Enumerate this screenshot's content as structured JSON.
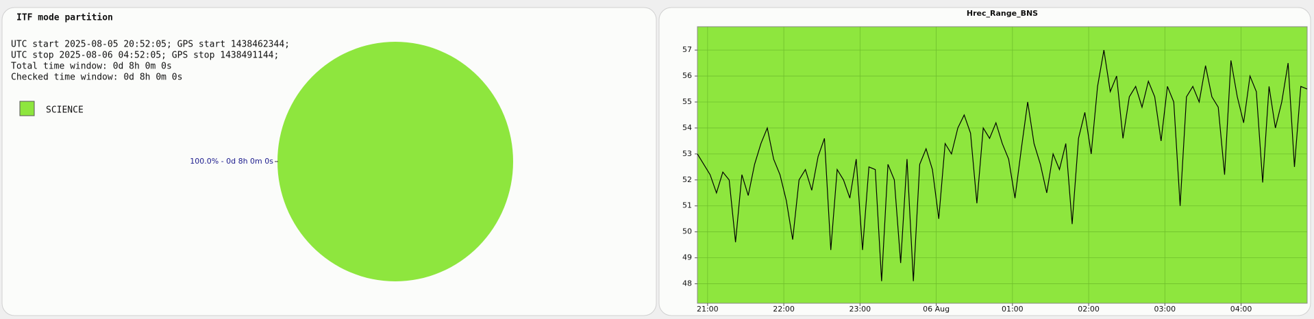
{
  "chart_data": [
    {
      "type": "pie",
      "title": "ITF mode partition",
      "text_lines": [
        "UTC start 2025-08-05 20:52:05; GPS start 1438462344;",
        "UTC stop 2025-08-06 04:52:05; GPS stop 1438491144;",
        "Total time window: 0d 8h 0m 0s",
        "Checked time window: 0d 8h 0m 0s"
      ],
      "categories": [
        "SCIENCE"
      ],
      "values": [
        100
      ],
      "value_labels": [
        "100.0% - 0d 8h 0m 0s"
      ],
      "colors": [
        "#8ee63e"
      ]
    },
    {
      "type": "line",
      "title": "Hrec_Range_BNS",
      "x": [
        "20:52",
        "20:57",
        "21:02",
        "21:07",
        "21:12",
        "21:17",
        "21:22",
        "21:27",
        "21:32",
        "21:37",
        "21:42",
        "21:47",
        "21:52",
        "21:57",
        "22:02",
        "22:07",
        "22:12",
        "22:17",
        "22:22",
        "22:27",
        "22:32",
        "22:37",
        "22:42",
        "22:47",
        "22:52",
        "22:57",
        "23:02",
        "23:07",
        "23:12",
        "23:17",
        "23:22",
        "23:27",
        "23:32",
        "23:37",
        "23:42",
        "23:47",
        "23:52",
        "23:57",
        "00:02",
        "00:07",
        "00:12",
        "00:17",
        "00:22",
        "00:27",
        "00:32",
        "00:37",
        "00:42",
        "00:47",
        "00:52",
        "00:57",
        "01:02",
        "01:07",
        "01:12",
        "01:17",
        "01:22",
        "01:27",
        "01:32",
        "01:37",
        "01:42",
        "01:47",
        "01:52",
        "01:57",
        "02:02",
        "02:07",
        "02:12",
        "02:17",
        "02:22",
        "02:27",
        "02:32",
        "02:37",
        "02:42",
        "02:47",
        "02:52",
        "02:57",
        "03:02",
        "03:07",
        "03:12",
        "03:17",
        "03:22",
        "03:27",
        "03:32",
        "03:37",
        "03:42",
        "03:47",
        "03:52",
        "03:57",
        "04:02",
        "04:07",
        "04:12",
        "04:17",
        "04:22",
        "04:27",
        "04:32",
        "04:37",
        "04:42",
        "04:47",
        "04:52"
      ],
      "series": [
        {
          "color": "#000000",
          "values": [
            53,
            52.6,
            52.2,
            51.5,
            52.3,
            52.0,
            49.6,
            52.2,
            51.4,
            52.6,
            53.4,
            54.0,
            52.8,
            52.2,
            51.2,
            49.7,
            52.0,
            52.4,
            51.6,
            52.9,
            53.6,
            49.3,
            52.4,
            52.0,
            51.3,
            52.8,
            49.3,
            52.5,
            52.4,
            48.1,
            52.6,
            52.0,
            48.8,
            52.8,
            48.1,
            52.6,
            53.2,
            52.4,
            50.5,
            53.4,
            53.0,
            54.0,
            54.5,
            53.8,
            51.1,
            54.0,
            53.6,
            54.2,
            53.4,
            52.8,
            51.3,
            53.2,
            55.0,
            53.4,
            52.6,
            51.5,
            53.0,
            52.4,
            53.4,
            50.3,
            53.6,
            54.6,
            53.0,
            55.6,
            57.0,
            55.4,
            56.0,
            53.6,
            55.2,
            55.6,
            54.8,
            55.8,
            55.2,
            53.5,
            55.6,
            55.0,
            51.0,
            55.2,
            55.6,
            55.0,
            56.4,
            55.2,
            54.8,
            52.2,
            56.6,
            55.2,
            54.2,
            56.0,
            55.4,
            51.9,
            55.6,
            54.0,
            55.0,
            56.5,
            52.5,
            55.6,
            55.5
          ]
        }
      ],
      "xlim": [
        "20:52",
        "04:52"
      ],
      "xticks": [
        {
          "value": "21:00",
          "label": "21:00"
        },
        {
          "value": "22:00",
          "label": "22:00"
        },
        {
          "value": "23:00",
          "label": "23:00"
        },
        {
          "value": "00:00",
          "label": "06 Aug"
        },
        {
          "value": "01:00",
          "label": "01:00"
        },
        {
          "value": "02:00",
          "label": "02:00"
        },
        {
          "value": "03:00",
          "label": "03:00"
        },
        {
          "value": "04:00",
          "label": "04:00"
        }
      ],
      "ylim": [
        47.25,
        57.9
      ],
      "yticks": [
        48,
        49,
        50,
        51,
        52,
        53,
        54,
        55,
        56,
        57
      ],
      "grid": true,
      "background": "#8ee63e"
    }
  ]
}
